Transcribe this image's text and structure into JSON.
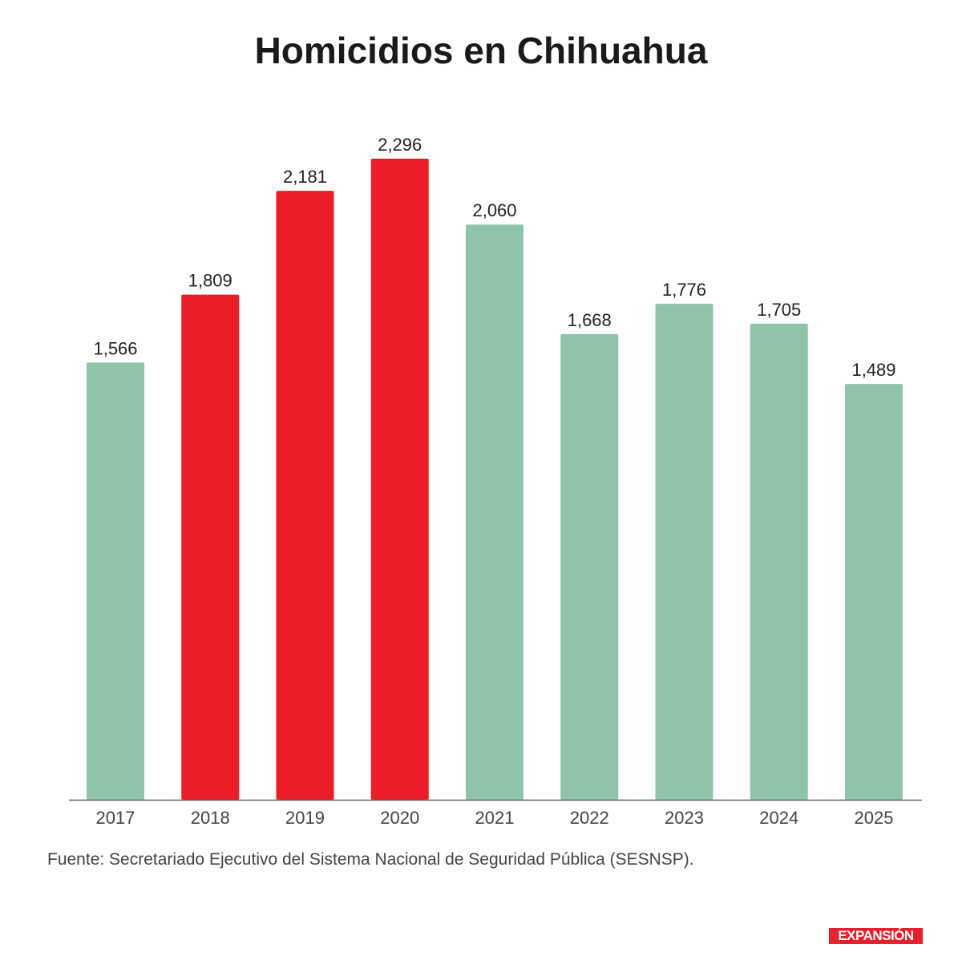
{
  "chart_data": {
    "type": "bar",
    "title": "Homicidios en Chihuahua",
    "categories": [
      "2017",
      "2018",
      "2019",
      "2020",
      "2021",
      "2022",
      "2023",
      "2024",
      "2025"
    ],
    "values": [
      1566,
      1809,
      2181,
      2296,
      2060,
      1668,
      1776,
      1705,
      1489
    ],
    "value_labels": [
      "1,566",
      "1,809",
      "2,181",
      "2,296",
      "2,060",
      "1,668",
      "1,776",
      "1,705",
      "1,489"
    ],
    "highlighted": [
      false,
      true,
      true,
      true,
      false,
      false,
      false,
      false,
      false
    ],
    "colors": {
      "default": "#8fc3aa",
      "highlight": "#ed1c29"
    },
    "ylim": [
      0,
      2296
    ],
    "grid": false,
    "xlabel": "",
    "ylabel": ""
  },
  "source": "Fuente: Secretariado Ejecutivo del Sistema Nacional de Seguridad Pública (SESNSP).",
  "logo": "EXPANSIÓN"
}
